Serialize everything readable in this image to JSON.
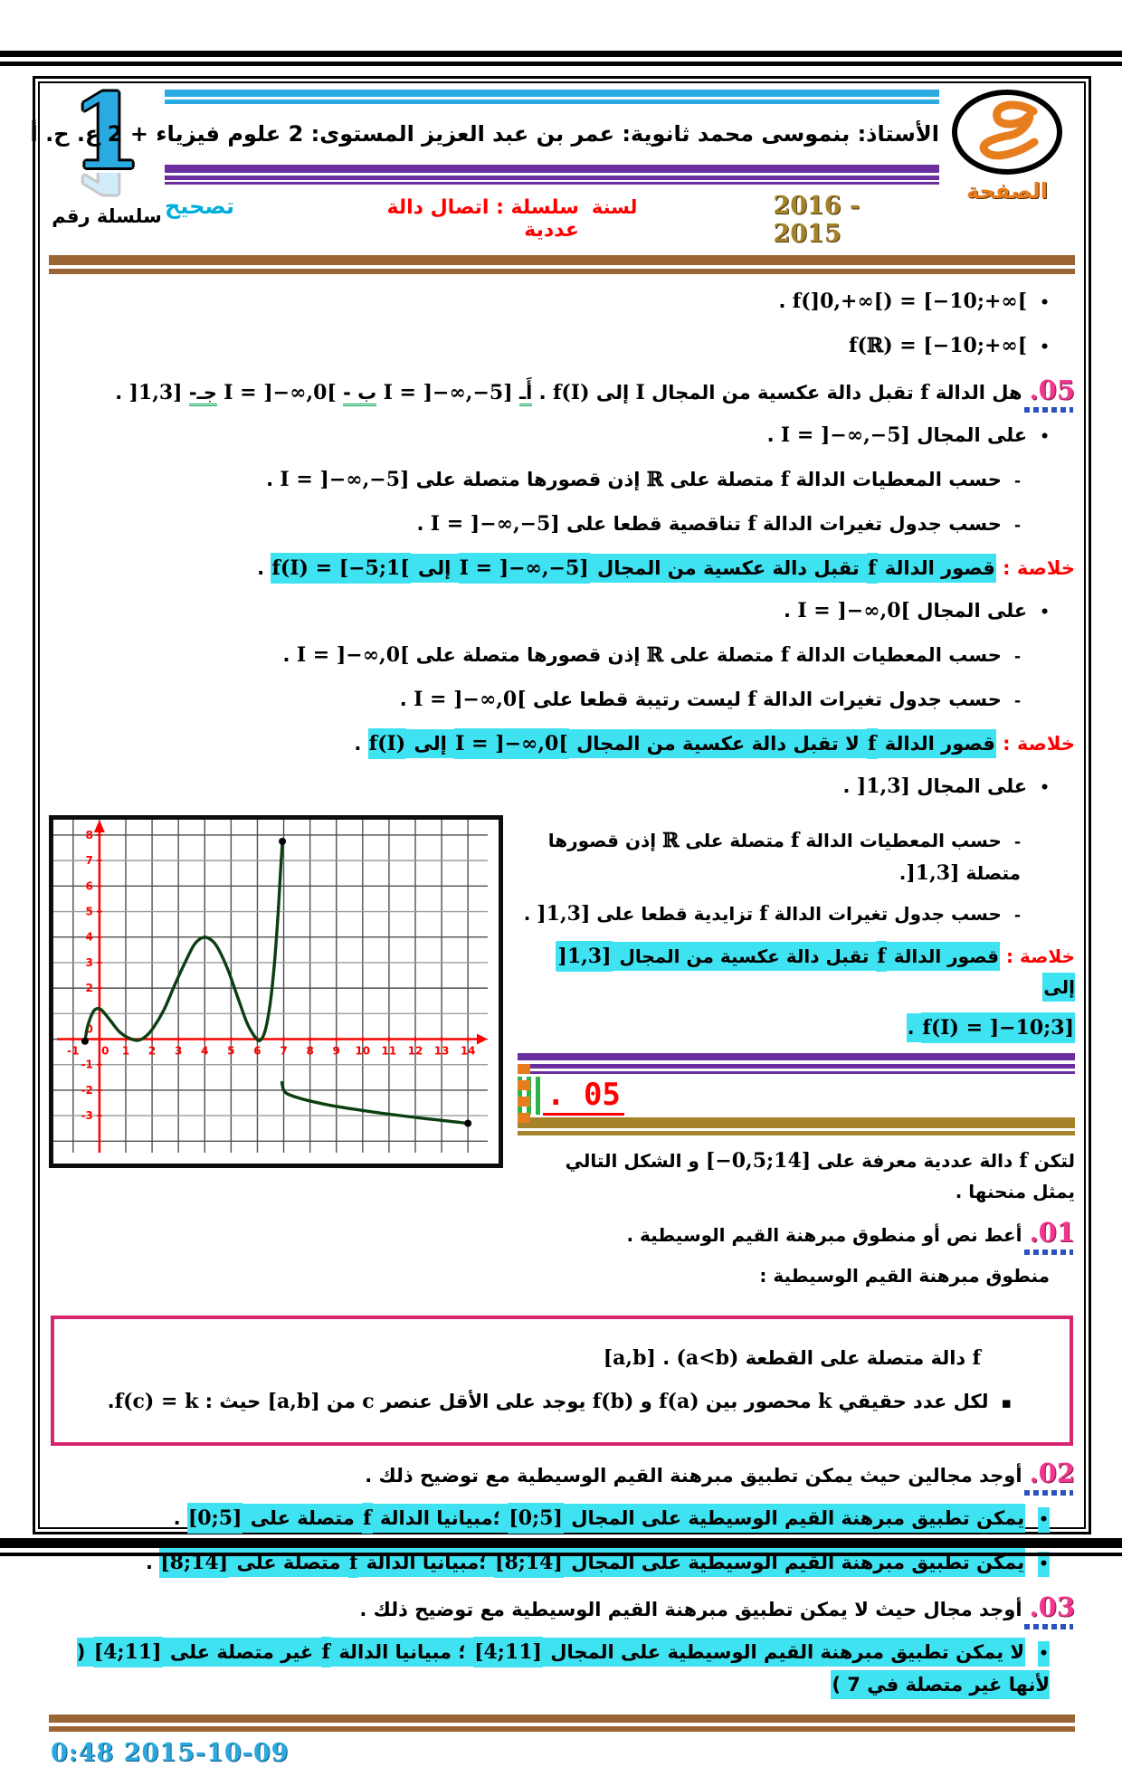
{
  "header": {
    "series_badge": {
      "number": "1",
      "label": "سلسلة رقم"
    },
    "title_line": "الأستاذ: بنموسى محمد ثانوية: عمر بن عبد العزيز المستوى: 2 علوم فيزياء + 2 ع. ح. أ",
    "page_label": "الصفحة",
    "subrow": {
      "correction": "تصحيح",
      "series_title": "سلسلة : اتصال دالة عددية",
      "year_label": "لسنة",
      "year_value": "2016 - 2015"
    }
  },
  "section_break": {
    "number": "05 ."
  },
  "colors": {
    "highlight": "#3fe2f1",
    "accent_red": "#ff0000",
    "purple": "#6b2e9e",
    "brown": "#9a6434",
    "gold": "#a5832a",
    "pink_number": "#f0368e",
    "cyan_header": "#29abe2",
    "orange": "#e87d1e",
    "theorem_border": "#d6246e"
  },
  "content_a": [
    {
      "name": "image-line-1",
      "marker": "bullet",
      "segments": [
        {
          "m": "f(]0,+∞[) = [−10;+∞["
        },
        {
          "t": " ."
        }
      ]
    },
    {
      "name": "image-line-2",
      "marker": "bullet",
      "segments": [
        {
          "m": "f(ℝ) = [−10;+∞["
        }
      ]
    },
    {
      "name": "q05-line",
      "num": "05.",
      "segments": [
        {
          "t": "هل الدالة "
        },
        {
          "m": "f"
        },
        {
          "t": " تقبل دالة عكسية من المجال "
        },
        {
          "m": "I"
        },
        {
          "t": " إلى "
        },
        {
          "m": "f(I)"
        },
        {
          "t": " .  "
        },
        {
          "t": "أَـ",
          "u": "green"
        },
        {
          "t": "  "
        },
        {
          "m": "I = ]−∞,−5]"
        },
        {
          "t": "  "
        },
        {
          "t": "ب -",
          "u": "green"
        },
        {
          "t": " "
        },
        {
          "m": "I = ]−∞,0["
        },
        {
          "t": "  "
        },
        {
          "t": "جـ-",
          "u": "green"
        },
        {
          "t": " "
        },
        {
          "m": "]1,3]"
        },
        {
          "t": " ."
        }
      ]
    },
    {
      "name": "interval1-title",
      "marker": "bullet",
      "segments": [
        {
          "t": "على المجال "
        },
        {
          "m": "I = ]−∞,−5]"
        },
        {
          "t": " ."
        }
      ]
    },
    {
      "name": "interval1-continuity",
      "marker": "dash",
      "segments": [
        {
          "t": "حسب المعطيات الدالة "
        },
        {
          "m": "f"
        },
        {
          "t": " متصلة على "
        },
        {
          "m": "ℝ"
        },
        {
          "t": " إذن قصورها متصلة على "
        },
        {
          "m": "I = ]−∞,−5]"
        },
        {
          "t": " ."
        }
      ]
    },
    {
      "name": "interval1-monotony",
      "marker": "dash",
      "segments": [
        {
          "t": "حسب جدول تغيرات الدالة "
        },
        {
          "m": "f"
        },
        {
          "t": "  تناقصية قطعا على "
        },
        {
          "m": "I = ]−∞,−5]"
        },
        {
          "t": " ."
        }
      ]
    },
    {
      "name": "interval1-conclusion",
      "segments": [
        {
          "t": "خلاصة : ",
          "c": "red"
        },
        {
          "t": "قصور الدالة ",
          "hl": true
        },
        {
          "m": "f",
          "hl": true
        },
        {
          "t": " تقبل دالة عكسية من المجال ",
          "hl": true
        },
        {
          "m": "I = ]−∞,−5]",
          "hl": true
        },
        {
          "t": " إلى ",
          "hl": true
        },
        {
          "m": "f(I) = [−5;1[",
          "hl": true
        },
        {
          "t": " ."
        }
      ]
    },
    {
      "name": "interval2-title",
      "marker": "bullet",
      "segments": [
        {
          "t": "على المجال "
        },
        {
          "m": "I = ]−∞,0["
        },
        {
          "t": " ."
        }
      ]
    },
    {
      "name": "interval2-continuity",
      "marker": "dash",
      "segments": [
        {
          "t": "حسب المعطيات الدالة "
        },
        {
          "m": "f"
        },
        {
          "t": " متصلة على "
        },
        {
          "m": "ℝ"
        },
        {
          "t": " إذن قصورها متصلة على "
        },
        {
          "m": "I = ]−∞,0["
        },
        {
          "t": " ."
        }
      ]
    },
    {
      "name": "interval2-monotony",
      "marker": "dash",
      "segments": [
        {
          "t": "حسب جدول تغيرات الدالة "
        },
        {
          "m": "f"
        },
        {
          "t": "  ليست رتيبة قطعا على "
        },
        {
          "m": "I = ]−∞,0["
        },
        {
          "t": " ."
        }
      ]
    },
    {
      "name": "interval2-conclusion",
      "segments": [
        {
          "t": "خلاصة : ",
          "c": "red"
        },
        {
          "t": "قصور الدالة ",
          "hl": true
        },
        {
          "m": "f",
          "hl": true
        },
        {
          "t": " لا تقبل دالة عكسية من المجال ",
          "hl": true
        },
        {
          "m": "I = ]−∞,0[",
          "hl": true
        },
        {
          "t": " إلى ",
          "hl": true
        },
        {
          "m": "f(I)",
          "hl": true
        },
        {
          "t": " ."
        }
      ]
    },
    {
      "name": "interval3-title",
      "marker": "bullet",
      "segments": [
        {
          "t": "على المجال "
        },
        {
          "m": "]1,3]"
        },
        {
          "t": " ."
        }
      ]
    }
  ],
  "content_b": [
    {
      "name": "interval3-continuity",
      "marker": "dash",
      "segments": [
        {
          "t": "حسب المعطيات الدالة "
        },
        {
          "m": "f"
        },
        {
          "t": " متصلة على "
        },
        {
          "m": "ℝ"
        },
        {
          "t": " إذن قصورها متصلة "
        },
        {
          "m": "]1,3]"
        },
        {
          "t": "."
        }
      ]
    },
    {
      "name": "interval3-monotony",
      "marker": "dash",
      "segments": [
        {
          "t": "حسب جدول تغيرات الدالة "
        },
        {
          "m": "f"
        },
        {
          "t": "  تزايدية قطعا على "
        },
        {
          "m": "]1,3]"
        },
        {
          "t": " ."
        }
      ]
    },
    {
      "name": "interval3-conclusion",
      "segments": [
        {
          "t": "خلاصة : ",
          "c": "red"
        },
        {
          "t": "قصور الدالة ",
          "hl": true
        },
        {
          "m": "f",
          "hl": true
        },
        {
          "t": " تقبل دالة عكسية من المجال ",
          "hl": true
        },
        {
          "m": "]1,3]",
          "hl": true
        },
        {
          "t": " إلى",
          "hl": true
        }
      ]
    },
    {
      "name": "interval3-conclusion-2",
      "segments": [
        {
          "m": "f(I) = ]−10;3]",
          "hl": true
        },
        {
          "t": " .",
          "hl": true
        }
      ]
    }
  ],
  "content_c": [
    {
      "name": "exercise5-intro",
      "segments": [
        {
          "t": "لتكن "
        },
        {
          "m": "f"
        },
        {
          "t": "  دالة عددية معرفة على "
        },
        {
          "m": "[−0,5;14]"
        },
        {
          "t": " و الشكل التالي يمثل منحنها ."
        }
      ]
    },
    {
      "name": "q01-line",
      "num": "01.",
      "segments": [
        {
          "t": "أعط نص أو منطوق مبرهنة القيم الوسيطية ."
        }
      ]
    },
    {
      "name": "ivt-statement-title",
      "cls": "bullet",
      "segments": [
        {
          "t": "منطوق مبرهنة القيم الوسيطية  :"
        }
      ]
    }
  ],
  "theorem_box": [
    {
      "name": "theorem-line-1",
      "cls": "t1",
      "segments": [
        {
          "m": "f"
        },
        {
          "t": " دالة متصلة على القطعة "
        },
        {
          "m": "[a,b]"
        },
        {
          "t": " . "
        },
        {
          "m": "(a<b)"
        }
      ]
    },
    {
      "name": "theorem-line-2",
      "cls": "t2",
      "marker": "sq",
      "segments": [
        {
          "t": "لكل عدد حقيقي "
        },
        {
          "m": "k"
        },
        {
          "t": "  محصور بين "
        },
        {
          "m": "f(a)"
        },
        {
          "t": " و "
        },
        {
          "m": "f(b)"
        },
        {
          "t": " يوجد على الأقل عنصر "
        },
        {
          "m": "c"
        },
        {
          "t": "  من "
        },
        {
          "m": "[a,b]"
        },
        {
          "t": " حيث : "
        },
        {
          "m": "f(c) = k"
        },
        {
          "t": "."
        }
      ]
    }
  ],
  "content_d": [
    {
      "name": "q02-line",
      "num": "02.",
      "segments": [
        {
          "t": "أوجد مجالين حيث يمكن تطبيق مبرهنة القيم الوسيطية  مع توضيح ذلك ."
        }
      ]
    },
    {
      "name": "q02-answer-1",
      "marker": "bullet",
      "mkhl": true,
      "segments": [
        {
          "t": "يمكن تطبيق مبرهنة القيم الوسيطية على المجال ",
          "hl": true
        },
        {
          "m": "[0;5]",
          "hl": true
        },
        {
          "t": " ؛مبيانيا الدالة ",
          "hl": true
        },
        {
          "m": "f",
          "hl": true
        },
        {
          "t": "  متصلة على ",
          "hl": true
        },
        {
          "m": "[0;5]",
          "hl": true
        },
        {
          "t": " ."
        }
      ]
    },
    {
      "name": "q02-answer-2",
      "marker": "bullet",
      "mkhl": true,
      "segments": [
        {
          "t": "يمكن تطبيق مبرهنة القيم الوسيطية على المجال ",
          "hl": true
        },
        {
          "m": "[8;14]",
          "hl": true
        },
        {
          "t": " ؛مبيانيا الدالة ",
          "hl": true
        },
        {
          "m": "f",
          "hl": true
        },
        {
          "t": "  متصلة على ",
          "hl": true
        },
        {
          "m": "[8;14]",
          "hl": true
        },
        {
          "t": " ."
        }
      ]
    },
    {
      "name": "q03-line",
      "num": "03.",
      "segments": [
        {
          "t": "أوجد مجال حيث لا يمكن تطبيق مبرهنة القيم الوسيطية  مع توضيح ذلك ."
        }
      ]
    },
    {
      "name": "q03-answer",
      "marker": "bullet",
      "mkhl": true,
      "segments": [
        {
          "t": "لا يمكن تطبيق مبرهنة القيم الوسيطية على المجال ",
          "hl": true
        },
        {
          "m": "[4;11]",
          "hl": true
        },
        {
          "t": " ؛ مبيانيا الدالة ",
          "hl": true
        },
        {
          "m": "f",
          "hl": true
        },
        {
          "t": "  غير متصلة على ",
          "hl": true
        },
        {
          "m": "[4;11]",
          "hl": true
        },
        {
          "t": " ( لأنها غير متصلة في 7 )",
          "hl": true
        }
      ]
    }
  ],
  "footer": {
    "timestamp": "0:48 2015-10-09"
  },
  "chart_data": {
    "type": "line",
    "title": "",
    "xlabel": "",
    "ylabel": "",
    "xlim": [
      -1.75,
      14.75
    ],
    "ylim": [
      -4.45,
      8.6
    ],
    "grid": true,
    "axis_color": "#ff0000",
    "curve_color": "#0b3f10",
    "x_ticks": [
      -1,
      0,
      1,
      2,
      3,
      4,
      5,
      6,
      7,
      8,
      9,
      10,
      11,
      12,
      13,
      14
    ],
    "y_ticks": [
      -3,
      -2,
      -1,
      0,
      2,
      3,
      4,
      5,
      6,
      7,
      8
    ],
    "series": [
      {
        "name": "branch-1",
        "points": [
          [
            -0.55,
            -0.08
          ],
          [
            -0.45,
            0.5
          ],
          [
            -0.25,
            1.05
          ],
          [
            -0.08,
            1.2
          ],
          [
            0.1,
            1.12
          ],
          [
            0.4,
            0.75
          ],
          [
            0.75,
            0.3
          ],
          [
            1.1,
            0.05
          ],
          [
            1.45,
            -0.05
          ],
          [
            1.75,
            0.1
          ],
          [
            2.05,
            0.45
          ],
          [
            2.45,
            1.15
          ],
          [
            2.85,
            2.1
          ],
          [
            3.25,
            3.0
          ],
          [
            3.6,
            3.7
          ],
          [
            3.9,
            3.97
          ],
          [
            4.15,
            3.95
          ],
          [
            4.45,
            3.65
          ],
          [
            4.85,
            2.8
          ],
          [
            5.25,
            1.65
          ],
          [
            5.6,
            0.65
          ],
          [
            5.9,
            0.1
          ],
          [
            6.1,
            -0.05
          ],
          [
            6.3,
            0.35
          ],
          [
            6.5,
            1.5
          ],
          [
            6.65,
            3.0
          ],
          [
            6.78,
            4.8
          ],
          [
            6.88,
            6.6
          ],
          [
            6.95,
            7.75
          ]
        ]
      },
      {
        "name": "branch-2",
        "points": [
          [
            6.93,
            -1.7
          ],
          [
            6.99,
            -1.98
          ],
          [
            7.1,
            -2.12
          ],
          [
            7.4,
            -2.25
          ],
          [
            7.9,
            -2.4
          ],
          [
            8.7,
            -2.58
          ],
          [
            9.7,
            -2.75
          ],
          [
            10.7,
            -2.9
          ],
          [
            11.7,
            -3.03
          ],
          [
            12.7,
            -3.15
          ],
          [
            13.5,
            -3.24
          ],
          [
            14,
            -3.3
          ]
        ]
      }
    ],
    "endpoint_dots": [
      [
        -0.55,
        -0.08
      ],
      [
        6.95,
        7.75
      ],
      [
        14,
        -3.3
      ]
    ]
  }
}
